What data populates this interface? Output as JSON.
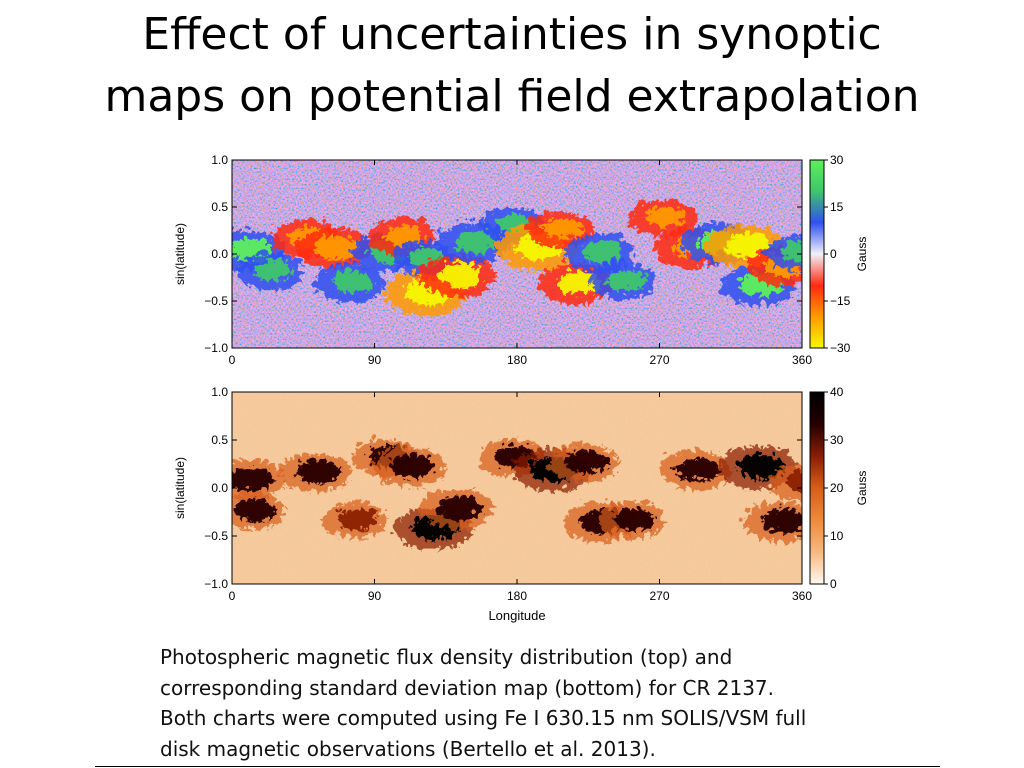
{
  "slide": {
    "title_line1": "Effect of uncertainties in synoptic",
    "title_line2": "maps on potential field extrapolation"
  },
  "caption": {
    "line1": "Photospheric magnetic flux density distribution (top) and",
    "line2": "corresponding standard deviation map (bottom) for CR 2137.",
    "line3": "Both charts were computed using Fe I 630.15 nm SOLIS/VSM full",
    "line4": "disk magnetic observations (Bertello et al. 2013)."
  },
  "chart_data": [
    {
      "type": "heatmap",
      "title": "",
      "xlabel": "",
      "ylabel": "sin(latitude)",
      "xlim": [
        0,
        360
      ],
      "ylim": [
        -1.0,
        1.0
      ],
      "x_ticks": [
        "0",
        "90",
        "180",
        "270",
        "360"
      ],
      "y_ticks": [
        "1.0",
        "0.5",
        "0.0",
        "−0.5",
        "−1.0"
      ],
      "colorbar": {
        "label": "Gauss",
        "range": [
          -30,
          30
        ],
        "ticks": [
          "30",
          "15",
          "0",
          "−15",
          "−30"
        ],
        "colors": [
          "#f7f700",
          "#ff9a00",
          "#ff2a12",
          "#f0f0f8",
          "#3050f0",
          "#3fc66a",
          "#5cf05c"
        ]
      },
      "features": [
        {
          "lon": 8,
          "lat": 0.07,
          "value": 25
        },
        {
          "lon": 22,
          "lat": -0.15,
          "value": 20
        },
        {
          "lon": 45,
          "lat": 0.2,
          "value": -22
        },
        {
          "lon": 62,
          "lat": 0.1,
          "value": -25
        },
        {
          "lon": 72,
          "lat": -0.27,
          "value": 22
        },
        {
          "lon": 95,
          "lat": 0.05,
          "value": 20
        },
        {
          "lon": 105,
          "lat": 0.22,
          "value": -20
        },
        {
          "lon": 120,
          "lat": -0.38,
          "value": -30
        },
        {
          "lon": 118,
          "lat": 0.0,
          "value": 15
        },
        {
          "lon": 140,
          "lat": -0.2,
          "value": -26
        },
        {
          "lon": 150,
          "lat": 0.15,
          "value": 24
        },
        {
          "lon": 175,
          "lat": 0.35,
          "value": 18
        },
        {
          "lon": 190,
          "lat": 0.1,
          "value": -30
        },
        {
          "lon": 205,
          "lat": 0.3,
          "value": -20
        },
        {
          "lon": 215,
          "lat": -0.28,
          "value": -26
        },
        {
          "lon": 230,
          "lat": 0.05,
          "value": 22
        },
        {
          "lon": 245,
          "lat": -0.25,
          "value": 20
        },
        {
          "lon": 270,
          "lat": 0.42,
          "value": -20
        },
        {
          "lon": 288,
          "lat": 0.1,
          "value": -24
        },
        {
          "lon": 305,
          "lat": 0.15,
          "value": 26
        },
        {
          "lon": 322,
          "lat": 0.12,
          "value": -28
        },
        {
          "lon": 330,
          "lat": -0.3,
          "value": 25
        },
        {
          "lon": 345,
          "lat": -0.1,
          "value": -22
        },
        {
          "lon": 355,
          "lat": 0.05,
          "value": 18
        }
      ]
    },
    {
      "type": "heatmap",
      "title": "",
      "xlabel": "Longitude",
      "ylabel": "sin(latitude)",
      "xlim": [
        0,
        360
      ],
      "ylim": [
        -1.0,
        1.0
      ],
      "x_ticks": [
        "0",
        "90",
        "180",
        "270",
        "360"
      ],
      "y_ticks": [
        "1.0",
        "0.5",
        "0.0",
        "−0.5",
        "−1.0"
      ],
      "colorbar": {
        "label": "Gauss",
        "range": [
          0,
          40
        ],
        "ticks": [
          "40",
          "30",
          "20",
          "10",
          "0"
        ],
        "colors": [
          "#fff8ef",
          "#f7b880",
          "#ee8a3a",
          "#d75e18",
          "#8a1e06",
          "#240100",
          "#000000"
        ]
      },
      "features": [
        {
          "lon": 8,
          "lat": 0.12,
          "value": 35
        },
        {
          "lon": 10,
          "lat": -0.2,
          "value": 30
        },
        {
          "lon": 50,
          "lat": 0.2,
          "value": 33
        },
        {
          "lon": 75,
          "lat": -0.3,
          "value": 28
        },
        {
          "lon": 95,
          "lat": 0.35,
          "value": 30
        },
        {
          "lon": 110,
          "lat": 0.25,
          "value": 34
        },
        {
          "lon": 125,
          "lat": -0.38,
          "value": 40
        },
        {
          "lon": 140,
          "lat": -0.18,
          "value": 36
        },
        {
          "lon": 175,
          "lat": 0.35,
          "value": 30
        },
        {
          "lon": 200,
          "lat": 0.22,
          "value": 40
        },
        {
          "lon": 220,
          "lat": 0.3,
          "value": 32
        },
        {
          "lon": 230,
          "lat": -0.32,
          "value": 36
        },
        {
          "lon": 250,
          "lat": -0.3,
          "value": 30
        },
        {
          "lon": 290,
          "lat": 0.22,
          "value": 34
        },
        {
          "lon": 330,
          "lat": 0.25,
          "value": 40
        },
        {
          "lon": 345,
          "lat": -0.32,
          "value": 36
        },
        {
          "lon": 358,
          "lat": 0.1,
          "value": 28
        }
      ]
    }
  ]
}
